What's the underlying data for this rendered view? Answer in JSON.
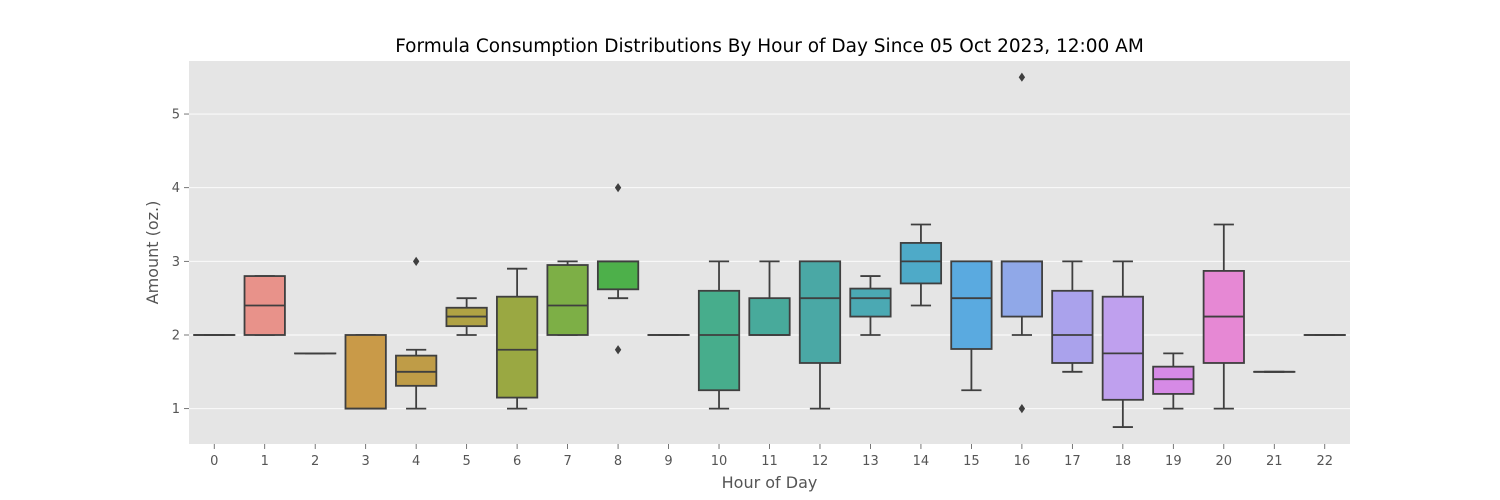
{
  "chart_data": {
    "type": "box",
    "title": "Formula Consumption Distributions By Hour of Day Since 05 Oct 2023, 12:00 AM",
    "xlabel": "Hour of Day",
    "ylabel": "Amount (oz.)",
    "ylim": [
      0.52,
      5.72
    ],
    "yticks": [
      "1",
      "2",
      "3",
      "4",
      "5"
    ],
    "grid": true,
    "categories": [
      "0",
      "1",
      "2",
      "3",
      "4",
      "5",
      "6",
      "7",
      "8",
      "9",
      "10",
      "11",
      "12",
      "13",
      "14",
      "15",
      "16",
      "17",
      "18",
      "19",
      "20",
      "21",
      "22"
    ],
    "boxes": [
      {
        "hour": "0",
        "color": "#e8857e",
        "q1": 2.0,
        "median": 2.0,
        "q3": 2.0,
        "whisker_low": 2.0,
        "whisker_high": 2.0,
        "outliers": []
      },
      {
        "hour": "1",
        "color": "#e8928a",
        "q1": 2.0,
        "median": 2.4,
        "q3": 2.8,
        "whisker_low": 2.0,
        "whisker_high": 2.8,
        "outliers": []
      },
      {
        "hour": "2",
        "color": "#de9a5c",
        "q1": 1.75,
        "median": 1.75,
        "q3": 1.75,
        "whisker_low": 1.75,
        "whisker_high": 1.75,
        "outliers": []
      },
      {
        "hour": "3",
        "color": "#c99a48",
        "q1": 1.0,
        "median": 1.0,
        "q3": 2.0,
        "whisker_low": 1.0,
        "whisker_high": 2.0,
        "outliers": []
      },
      {
        "hour": "4",
        "color": "#bf9c47",
        "q1": 1.31,
        "median": 1.5,
        "q3": 1.72,
        "whisker_low": 1.0,
        "whisker_high": 1.8,
        "outliers": [
          3.0
        ]
      },
      {
        "hour": "5",
        "color": "#b0a244",
        "q1": 2.12,
        "median": 2.25,
        "q3": 2.37,
        "whisker_low": 2.0,
        "whisker_high": 2.5,
        "outliers": []
      },
      {
        "hour": "6",
        "color": "#9aa842",
        "q1": 1.15,
        "median": 1.8,
        "q3": 2.52,
        "whisker_low": 1.0,
        "whisker_high": 2.9,
        "outliers": []
      },
      {
        "hour": "7",
        "color": "#7daf46",
        "q1": 2.0,
        "median": 2.4,
        "q3": 2.95,
        "whisker_low": 2.0,
        "whisker_high": 3.0,
        "outliers": []
      },
      {
        "hour": "8",
        "color": "#4db04a",
        "q1": 2.62,
        "median": 3.0,
        "q3": 3.0,
        "whisker_low": 2.5,
        "whisker_high": 3.0,
        "outliers": [
          4.0,
          1.8
        ]
      },
      {
        "hour": "9",
        "color": "#45b07a",
        "q1": 2.0,
        "median": 2.0,
        "q3": 2.0,
        "whisker_low": 2.0,
        "whisker_high": 2.0,
        "outliers": []
      },
      {
        "hour": "10",
        "color": "#47ad8c",
        "q1": 1.25,
        "median": 2.0,
        "q3": 2.6,
        "whisker_low": 1.0,
        "whisker_high": 3.0,
        "outliers": []
      },
      {
        "hour": "11",
        "color": "#48aa9b",
        "q1": 2.0,
        "median": 2.0,
        "q3": 2.5,
        "whisker_low": 2.0,
        "whisker_high": 3.0,
        "outliers": []
      },
      {
        "hour": "12",
        "color": "#4aa8a5",
        "q1": 1.62,
        "median": 2.5,
        "q3": 3.0,
        "whisker_low": 1.0,
        "whisker_high": 3.0,
        "outliers": []
      },
      {
        "hour": "13",
        "color": "#4ba9b3",
        "q1": 2.25,
        "median": 2.5,
        "q3": 2.63,
        "whisker_low": 2.0,
        "whisker_high": 2.8,
        "outliers": []
      },
      {
        "hour": "14",
        "color": "#4eaac8",
        "q1": 2.7,
        "median": 3.0,
        "q3": 3.25,
        "whisker_low": 2.4,
        "whisker_high": 3.5,
        "outliers": []
      },
      {
        "hour": "15",
        "color": "#5aaae0",
        "q1": 1.81,
        "median": 2.5,
        "q3": 3.0,
        "whisker_low": 1.25,
        "whisker_high": 3.0,
        "outliers": []
      },
      {
        "hour": "16",
        "color": "#90a8e8",
        "q1": 2.25,
        "median": 3.0,
        "q3": 3.0,
        "whisker_low": 2.0,
        "whisker_high": 3.0,
        "outliers": [
          5.5,
          1.0
        ]
      },
      {
        "hour": "17",
        "color": "#aaa2ec",
        "q1": 1.62,
        "median": 2.0,
        "q3": 2.6,
        "whisker_low": 1.5,
        "whisker_high": 3.0,
        "outliers": []
      },
      {
        "hour": "18",
        "color": "#bfa0ee",
        "q1": 1.12,
        "median": 1.75,
        "q3": 2.52,
        "whisker_low": 0.75,
        "whisker_high": 3.0,
        "outliers": []
      },
      {
        "hour": "19",
        "color": "#d68ae6",
        "q1": 1.2,
        "median": 1.4,
        "q3": 1.57,
        "whisker_low": 1.0,
        "whisker_high": 1.75,
        "outliers": []
      },
      {
        "hour": "20",
        "color": "#e688d4",
        "q1": 1.62,
        "median": 2.25,
        "q3": 2.87,
        "whisker_low": 1.0,
        "whisker_high": 3.5,
        "outliers": []
      },
      {
        "hour": "21",
        "color": "#e88ac6",
        "q1": 1.5,
        "median": 1.5,
        "q3": 1.5,
        "whisker_low": 1.5,
        "whisker_high": 1.5,
        "outliers": []
      },
      {
        "hour": "22",
        "color": "#e98aaa",
        "q1": 2.0,
        "median": 2.0,
        "q3": 2.0,
        "whisker_low": 2.0,
        "whisker_high": 2.0,
        "outliers": []
      }
    ]
  }
}
